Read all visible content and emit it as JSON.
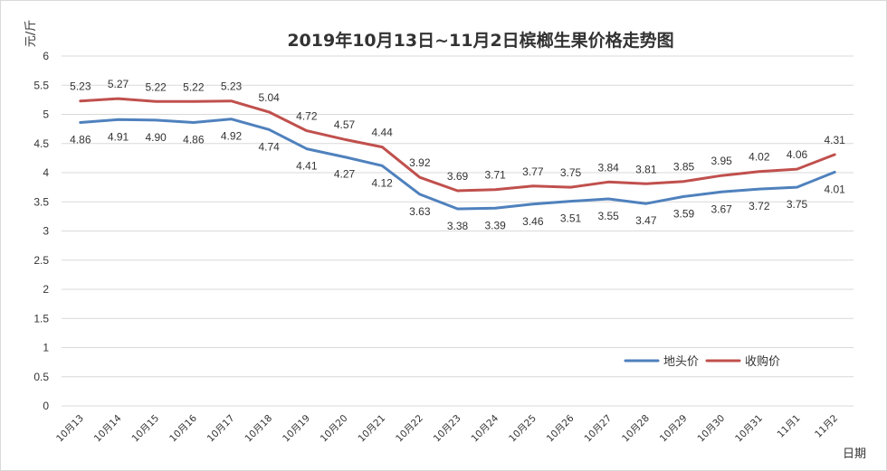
{
  "chart_data": {
    "type": "line",
    "title": "2019年10月13日~11月2日槟榔生果价格走势图",
    "ylabel": "元/斤",
    "xlabel": "日期",
    "ylim": [
      0,
      6
    ],
    "ytick_step": 0.5,
    "ytick_labels": [
      "0",
      "0.5",
      "1",
      "1.5",
      "2",
      "2.5",
      "3",
      "3.5",
      "4",
      "4.5",
      "5",
      "5.5",
      "6"
    ],
    "grid": true,
    "legend_position": "bottom-right",
    "categories": [
      "10月13",
      "10月14",
      "10月15",
      "10月16",
      "10月17",
      "10月18",
      "10月19",
      "10月20",
      "10月21",
      "10月22",
      "10月23",
      "10月24",
      "10月25",
      "10月26",
      "10月27",
      "10月28",
      "10月29",
      "10月30",
      "10月31",
      "11月1",
      "11月2"
    ],
    "series": [
      {
        "name": "地头价",
        "color": "#4f81bd",
        "label_position": "below",
        "values": [
          4.86,
          4.91,
          4.9,
          4.86,
          4.92,
          4.74,
          4.41,
          4.27,
          4.12,
          3.63,
          3.38,
          3.39,
          3.46,
          3.51,
          3.55,
          3.47,
          3.59,
          3.67,
          3.72,
          3.75,
          4.01
        ],
        "labels": [
          "4.86",
          "4.91",
          "4.90",
          "4.86",
          "4.92",
          "4.74",
          "4.41",
          "4.27",
          "4.12",
          "3.63",
          "3.38",
          "3.39",
          "3.46",
          "3.51",
          "3.55",
          "3.47",
          "3.59",
          "3.67",
          "3.72",
          "3.75",
          "4.01"
        ]
      },
      {
        "name": "收购价",
        "color": "#c0504d",
        "label_position": "above",
        "values": [
          5.23,
          5.27,
          5.22,
          5.22,
          5.23,
          5.04,
          4.72,
          4.57,
          4.44,
          3.92,
          3.69,
          3.71,
          3.77,
          3.75,
          3.84,
          3.81,
          3.85,
          3.95,
          4.02,
          4.06,
          4.31
        ],
        "labels": [
          "5.23",
          "5.27",
          "5.22",
          "5.22",
          "5.23",
          "5.04",
          "4.72",
          "4.57",
          "4.44",
          "3.92",
          "3.69",
          "3.71",
          "3.77",
          "3.75",
          "3.84",
          "3.81",
          "3.85",
          "3.95",
          "4.02",
          "4.06",
          "4.31"
        ]
      }
    ]
  }
}
